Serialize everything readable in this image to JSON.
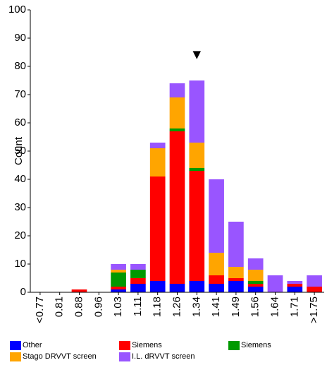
{
  "chart_data": {
    "type": "bar",
    "stacked": true,
    "title": "",
    "xlabel": "",
    "ylabel": "Count",
    "ylim": [
      0,
      100
    ],
    "yticks": [
      "0",
      "10",
      "20",
      "30",
      "40",
      "50",
      "60",
      "70",
      "80",
      "90",
      "100"
    ],
    "categories": [
      "<0.77",
      "0.81",
      "0.88",
      "0.96",
      "1.03",
      "1.11",
      "1.18",
      "1.26",
      "1.34",
      "1.41",
      "1.49",
      "1.56",
      "1.64",
      "1.71",
      ">1.75"
    ],
    "series": [
      {
        "name": "Other",
        "color": "#0000ff",
        "values": [
          0,
          0,
          0,
          0,
          1,
          3,
          4,
          3,
          4,
          3,
          4,
          2,
          0,
          2,
          0
        ]
      },
      {
        "name": "Siemens",
        "color": "#ff0000",
        "values": [
          0,
          0,
          1,
          0,
          1,
          2,
          37,
          54,
          39,
          3,
          1,
          1,
          0,
          1,
          2
        ]
      },
      {
        "name": "Siemens",
        "color": "#009900",
        "values": [
          0,
          0,
          0,
          0,
          5,
          3,
          0,
          1,
          1,
          0,
          0,
          1,
          0,
          0,
          0
        ]
      },
      {
        "name": "Stago DRVVT screen",
        "color": "#ffa500",
        "values": [
          0,
          0,
          0,
          0,
          1,
          0,
          10,
          11,
          9,
          8,
          4,
          4,
          0,
          0,
          0
        ]
      },
      {
        "name": "I.L. dRVVT screen",
        "color": "#9955ff",
        "values": [
          0,
          0,
          0,
          0,
          2,
          2,
          2,
          5,
          22,
          26,
          16,
          4,
          6,
          1,
          4
        ]
      }
    ],
    "marker": {
      "category": "1.34",
      "symbol": "▼"
    },
    "grid": false,
    "legend_position": "bottom"
  }
}
